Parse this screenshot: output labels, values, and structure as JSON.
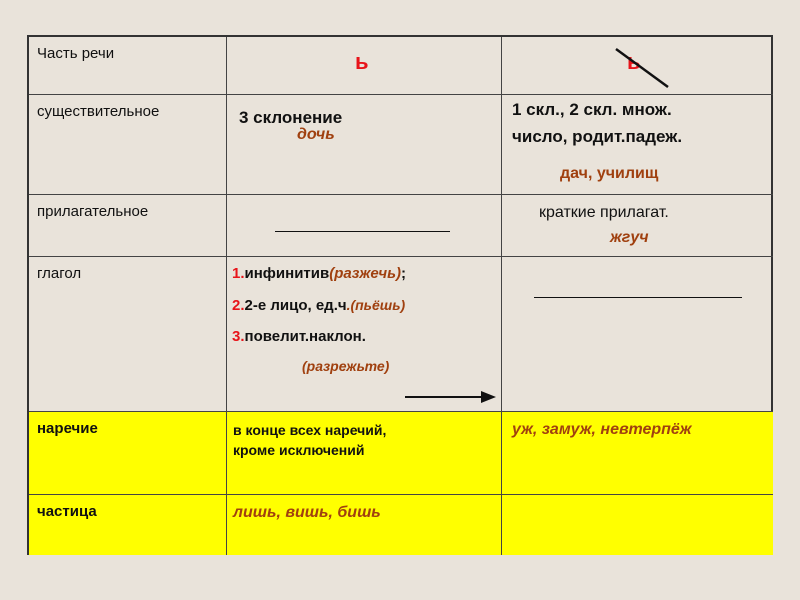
{
  "header": {
    "col1": "Часть речи",
    "col2": "ь",
    "col3": "ь"
  },
  "rows": [
    {
      "pos": "существительное",
      "with": "3 склонение",
      "with_example": "дочь",
      "without": [
        "1 скл., 2 скл. множ.",
        "число, родит.падеж."
      ],
      "without_example": "дач, училищ"
    },
    {
      "pos": "прилагательное",
      "without": "краткие прилагат.",
      "without_example": "жгуч"
    },
    {
      "pos": "глагол",
      "items": [
        {
          "num": "1.",
          "text": "инфинитив",
          "example": "(разжечь)",
          "tail": ";"
        },
        {
          "num": "2.",
          "text": "2-е лицо, ед.ч",
          "example": ".(пьёшь)",
          "tail": ""
        },
        {
          "num": "3.",
          "text": "повелит.наклон.",
          "example": "",
          "tail": ""
        }
      ],
      "extra_example": "(разрежьте)"
    },
    {
      "pos": "наречие",
      "with": [
        "в конце всех наречий,",
        "кроме исключений"
      ],
      "without_example": "уж, замуж, невтерпёж"
    },
    {
      "pos": "частица",
      "with_example": "лишь, вишь, бишь"
    }
  ],
  "colors": {
    "background": "#e9e3da",
    "highlight": "#ffff00",
    "red": "#e8141a",
    "brown": "#a0400f"
  }
}
